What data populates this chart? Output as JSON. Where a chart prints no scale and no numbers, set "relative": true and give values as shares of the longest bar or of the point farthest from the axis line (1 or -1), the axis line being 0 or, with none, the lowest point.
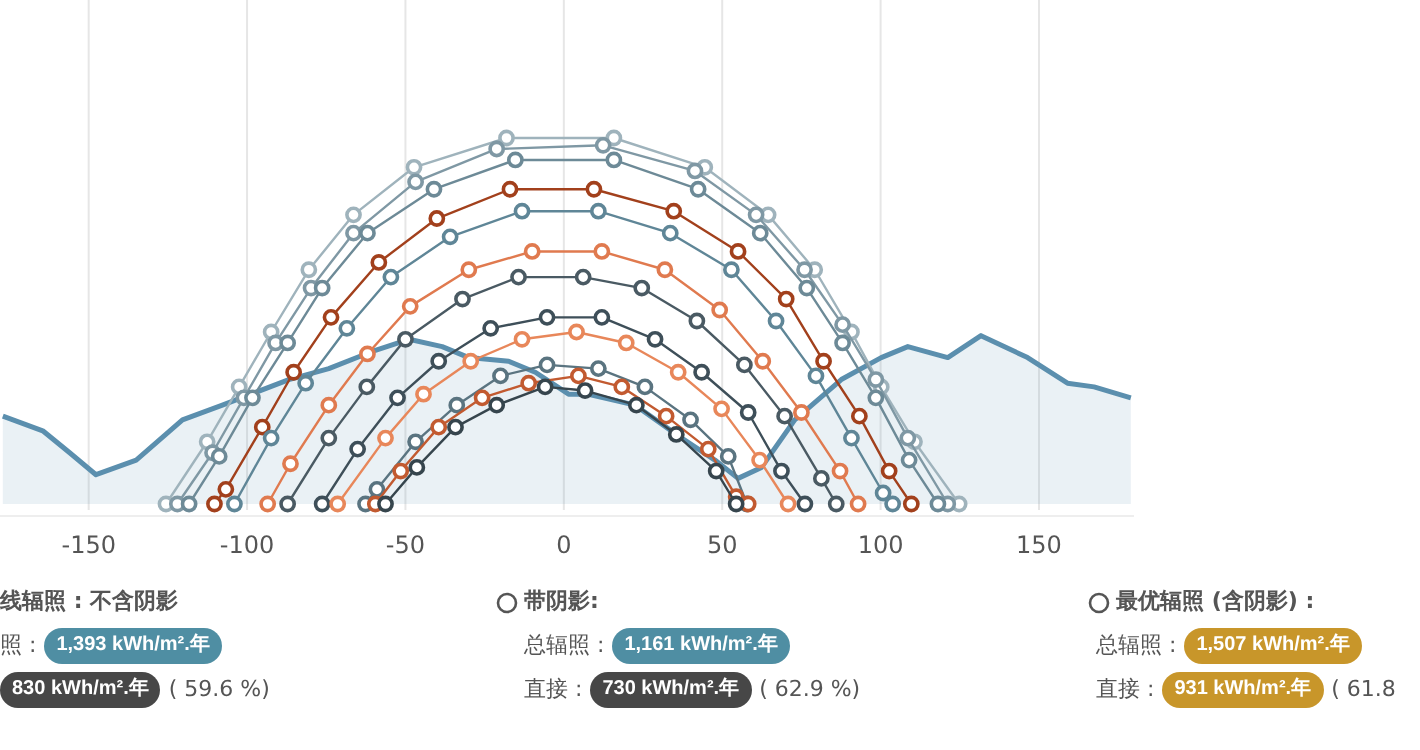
{
  "chart_data": [
    {
      "type": "line",
      "relative": true,
      "marker": "circle",
      "grid": "x",
      "xlim": [
        -178,
        180
      ],
      "xticks": [
        -150,
        -100,
        -50,
        0,
        50,
        100,
        150
      ],
      "series": [
        {
          "type": "area",
          "marker": "none",
          "color": "#5b8fae",
          "x": [
            -177.1,
            -164.5,
            -156,
            -147.7,
            -135,
            -120.4,
            -107.8,
            -86.8,
            -74.2,
            -59.5,
            -48.9,
            -38.4,
            -30,
            -17.4,
            -9,
            1.5,
            7.8,
            22.5,
            37.2,
            47.7,
            55,
            62.4,
            72.9,
            87.6,
            100.2,
            108.6,
            121.2,
            131.7,
            146.4,
            159,
            167.4,
            179
          ],
          "values": [
            0.24,
            0.2,
            0.14,
            0.08,
            0.12,
            0.23,
            0.27,
            0.34,
            0.37,
            0.42,
            0.45,
            0.43,
            0.4,
            0.39,
            0.36,
            0.3,
            0.3,
            0.27,
            0.18,
            0.12,
            0.07,
            0.1,
            0.23,
            0.34,
            0.4,
            0.43,
            0.4,
            0.46,
            0.4,
            0.33,
            0.32,
            0.29
          ]
        },
        {
          "color": "#9fb3bc",
          "x": [
            -125.6,
            -112.6,
            -102.5,
            -92.4,
            -80.5,
            -66.4,
            -47.3,
            -18.1,
            15.8,
            44.5,
            64.5,
            79.2,
            90.8,
            100.2,
            110.7,
            124.8
          ],
          "values": [
            0,
            0.17,
            0.32,
            0.47,
            0.64,
            0.79,
            0.92,
            1,
            1,
            0.92,
            0.79,
            0.64,
            0.47,
            0.32,
            0.17,
            0
          ]
        },
        {
          "color": "#7f98a4",
          "x": [
            -122,
            -110.9,
            -101,
            -91,
            -79.8,
            -66.4,
            -46.8,
            -21.2,
            12.4,
            41.4,
            60.7,
            76,
            88,
            98.5,
            108.6,
            121.2
          ],
          "values": [
            0,
            0.14,
            0.29,
            0.44,
            0.59,
            0.74,
            0.88,
            0.97,
            0.98,
            0.91,
            0.79,
            0.64,
            0.49,
            0.34,
            0.18,
            0
          ]
        },
        {
          "color": "#6d8a97",
          "x": [
            -118.3,
            -108.8,
            -98.3,
            -87.2,
            -76.3,
            -62,
            -41,
            -15.3,
            15.8,
            42.4,
            62,
            76.7,
            88,
            98.5,
            109,
            118.1
          ],
          "values": [
            0,
            0.13,
            0.29,
            0.44,
            0.59,
            0.74,
            0.86,
            0.94,
            0.94,
            0.86,
            0.74,
            0.59,
            0.44,
            0.29,
            0.12,
            0
          ]
        },
        {
          "color": "#a2401c",
          "x": [
            -110.3,
            -106.7,
            -95.2,
            -85.3,
            -73.5,
            -58.4,
            -40.1,
            -17,
            9.5,
            34.7,
            55,
            70.2,
            82,
            93.3,
            102.7,
            109.7
          ],
          "values": [
            0,
            0.04,
            0.21,
            0.36,
            0.51,
            0.66,
            0.78,
            0.86,
            0.86,
            0.8,
            0.69,
            0.56,
            0.39,
            0.24,
            0.09,
            0
          ]
        },
        {
          "color": "#5f8697",
          "x": [
            -104,
            -92.4,
            -81.5,
            -68.5,
            -54.6,
            -35.9,
            -13.2,
            10.9,
            33.6,
            52.9,
            67,
            79.6,
            90.8,
            100.8,
            103.8
          ],
          "values": [
            0,
            0.18,
            0.33,
            0.48,
            0.62,
            0.73,
            0.8,
            0.8,
            0.74,
            0.64,
            0.5,
            0.35,
            0.18,
            0.03,
            0
          ]
        },
        {
          "color": "#e07a4f",
          "x": [
            -93.5,
            -86.3,
            -74.2,
            -62,
            -48.5,
            -30,
            -10,
            12,
            31.9,
            49.2,
            62.8,
            75,
            87.2,
            92.9
          ],
          "values": [
            0,
            0.11,
            0.27,
            0.41,
            0.54,
            0.64,
            0.69,
            0.69,
            0.64,
            0.53,
            0.39,
            0.25,
            0.09,
            0
          ]
        },
        {
          "color": "#4a5a63",
          "x": [
            -87.2,
            -74.2,
            -62.2,
            -50,
            -32,
            -14.3,
            6.1,
            24.6,
            42,
            57,
            69.7,
            81.3,
            86
          ],
          "values": [
            0,
            0.18,
            0.32,
            0.45,
            0.56,
            0.62,
            0.62,
            0.59,
            0.5,
            0.38,
            0.24,
            0.07,
            0
          ]
        },
        {
          "color": "#3e4f59",
          "x": [
            -76.3,
            -65.1,
            -52.5,
            -39.5,
            -23.1,
            -5.3,
            12,
            28.8,
            43.5,
            58.2,
            68.7,
            76.1
          ],
          "values": [
            0,
            0.15,
            0.29,
            0.39,
            0.48,
            0.51,
            0.51,
            0.45,
            0.36,
            0.25,
            0.09,
            0
          ]
        },
        {
          "color": "#e8875a",
          "x": [
            -71.4,
            -56.3,
            -44.3,
            -29.4,
            -13.2,
            4,
            19.7,
            36.1,
            49.8,
            61.8,
            70.8
          ],
          "values": [
            0,
            0.18,
            0.3,
            0.39,
            0.45,
            0.47,
            0.44,
            0.36,
            0.26,
            0.12,
            0
          ]
        },
        {
          "color": "#5a7480",
          "x": [
            -62.6,
            -59,
            -46.8,
            -33.8,
            -20,
            -5.3,
            10.9,
            25.6,
            40,
            51.9,
            57.8
          ],
          "values": [
            0,
            0.04,
            0.17,
            0.27,
            0.35,
            0.38,
            0.37,
            0.32,
            0.23,
            0.13,
            0
          ]
        },
        {
          "color": "#c25a30",
          "x": [
            -59.5,
            -51.5,
            -39.5,
            -25.8,
            -11.1,
            4.6,
            18.3,
            32.3,
            45.6,
            54.4,
            58.2
          ],
          "values": [
            0,
            0.09,
            0.21,
            0.29,
            0.33,
            0.35,
            0.32,
            0.24,
            0.15,
            0.02,
            0
          ]
        },
        {
          "color": "#36454d",
          "x": [
            -56.3,
            -46.4,
            -34.2,
            -21.2,
            -5.9,
            6.7,
            22.9,
            35.5,
            48.1,
            54.4
          ],
          "values": [
            0,
            0.1,
            0.21,
            0.27,
            0.32,
            0.31,
            0.27,
            0.19,
            0.09,
            0
          ]
        }
      ]
    },
    {
      "type": "other",
      "annotations": [
        "线辐照 : 不含阴影",
        "照 :",
        "1,393 kWh/m².年",
        "830 kWh/m².年",
        "( 59.6 %)",
        "带阴影:",
        "总辐照 :",
        "1,161 kWh/m².年",
        "直接 :",
        "730 kWh/m².年",
        "( 62.9 %)",
        "最优辐照 (含阴影) :",
        "总辐照 :",
        "1,507 kWh/m².年",
        "直接 :",
        "931 kWh/m².年",
        "( 61.8"
      ]
    }
  ]
}
